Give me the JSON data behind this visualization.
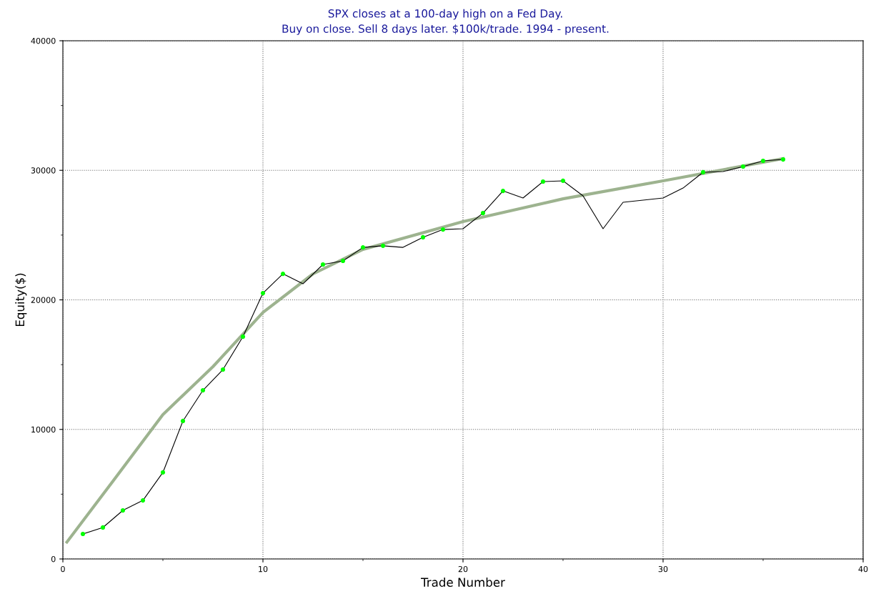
{
  "chart_data": {
    "type": "line",
    "title": "SPX closes at a 100-day high on a Fed Day.",
    "subtitle": "Buy on close. Sell 8 days later. $100k/trade. 1994 - present.",
    "xlabel": "Trade Number",
    "ylabel": "Equity($)",
    "xlim": [
      0,
      40
    ],
    "xticks": [
      0,
      10,
      20,
      30,
      40
    ],
    "ylim": [
      0,
      40000
    ],
    "yticks": [
      0,
      10000,
      20000,
      30000,
      40000
    ],
    "grid": true,
    "series": [
      {
        "color": "#000000",
        "marker": "none",
        "x": [
          1,
          2,
          3,
          4,
          5,
          6,
          7,
          8,
          9,
          10,
          11,
          12,
          13,
          14,
          15,
          16,
          17,
          18,
          19,
          20,
          21,
          22,
          23,
          24,
          25,
          26,
          27,
          28,
          29,
          30,
          31,
          32,
          33,
          34,
          35,
          36
        ],
        "values": [
          1930,
          2430,
          3750,
          4520,
          6680,
          10650,
          13020,
          14620,
          17160,
          20520,
          22010,
          21240,
          22730,
          23010,
          24050,
          24170,
          24050,
          24830,
          25430,
          25490,
          26700,
          28410,
          27860,
          29130,
          29190,
          28030,
          25490,
          27530,
          27700,
          27860,
          28630,
          29850,
          29900,
          30290,
          30730,
          30840
        ]
      },
      {
        "type": "scatter",
        "color": "#00ff00",
        "marker": "circle",
        "x": [
          1,
          2,
          3,
          4,
          5,
          6,
          7,
          8,
          9,
          10,
          11,
          13,
          14,
          15,
          16,
          18,
          19,
          21,
          22,
          24,
          25,
          32,
          34,
          35,
          36
        ],
        "values": [
          1930,
          2430,
          3750,
          4520,
          6680,
          10650,
          13020,
          14620,
          17160,
          20520,
          22010,
          22730,
          23010,
          24050,
          24170,
          24830,
          25430,
          26700,
          28410,
          29130,
          29190,
          29850,
          30290,
          30730,
          30840
        ]
      },
      {
        "color": "#9db38f",
        "marker": "none",
        "x": [
          0.2,
          2.5,
          5,
          7.5,
          10,
          12.5,
          15,
          20,
          25,
          30,
          36
        ],
        "values": [
          1300,
          6000,
          11150,
          14840,
          19030,
          22000,
          23890,
          26040,
          27800,
          29190,
          30900
        ]
      }
    ]
  }
}
